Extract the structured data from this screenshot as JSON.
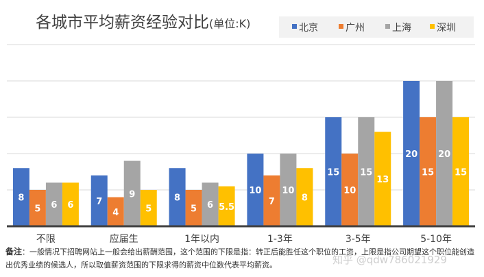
{
  "chart_data": {
    "type": "bar",
    "title": "各城市平均薪资经验对比",
    "title_unit": "(单位:K)",
    "categories": [
      "不限",
      "应届生",
      "1年以内",
      "1-3年",
      "3-5年",
      "5-10年"
    ],
    "series": [
      {
        "name": "北京",
        "color": "#4472C4",
        "values": [
          8,
          7,
          8,
          10,
          15,
          20
        ]
      },
      {
        "name": "广州",
        "color": "#ED7D31",
        "values": [
          5,
          4,
          5,
          7,
          10,
          15
        ]
      },
      {
        "name": "上海",
        "color": "#A5A5A5",
        "values": [
          6,
          9,
          6,
          10,
          15,
          20
        ]
      },
      {
        "name": "深圳",
        "color": "#FFC000",
        "values": [
          6,
          5,
          5.5,
          8,
          13,
          15
        ]
      }
    ],
    "ylim": [
      0,
      25
    ],
    "grid": true,
    "legend_position": "top-right"
  },
  "note": {
    "label": "备注",
    "text": "：一般情况下招聘网站上一般会给出薪酬范围，这个范围的下限是指：转正后能胜任这个职位的工资，上限是指公司期望这个职位能创造出优秀业绩的候选人，所以取值薪资范围的下限求得的薪资中位数代表平均薪资。"
  },
  "watermark": "知乎 @qdw786021929"
}
